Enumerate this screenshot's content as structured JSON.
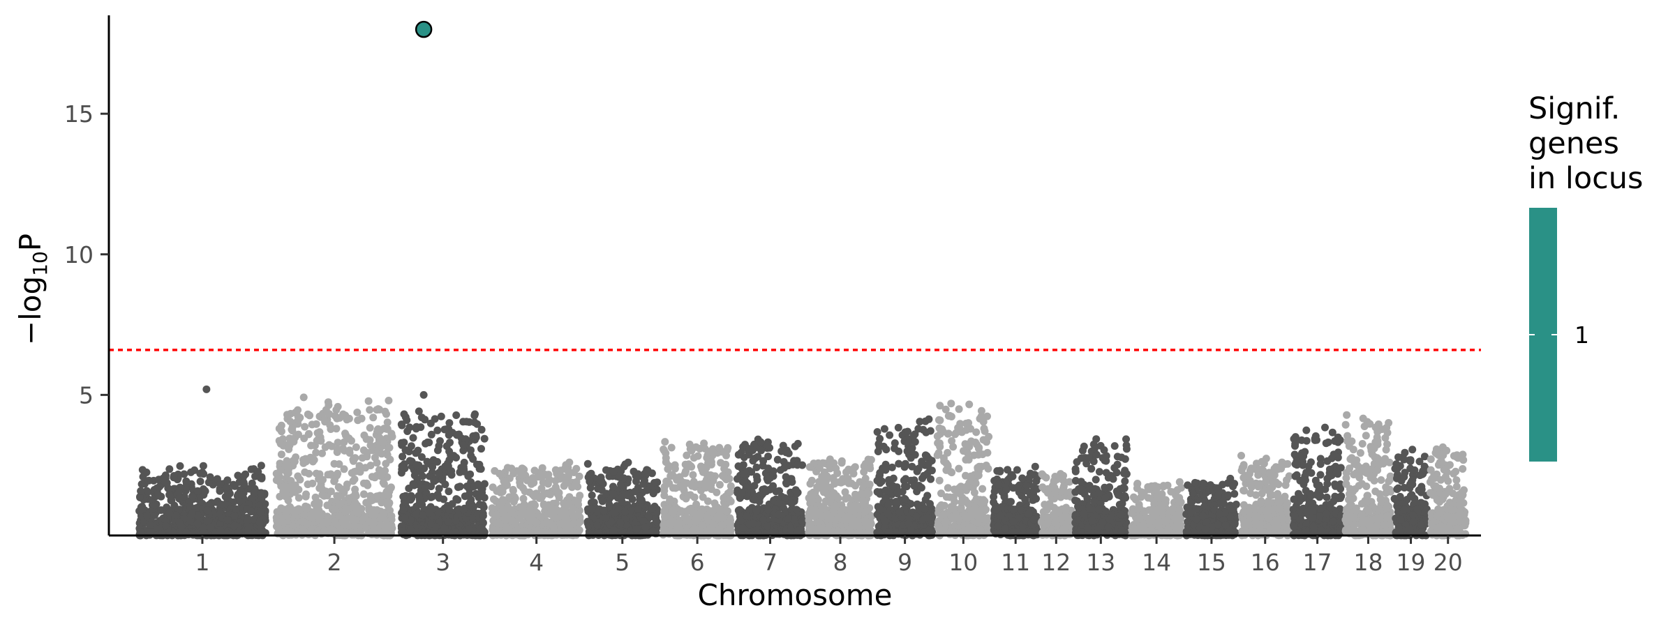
{
  "chart_data": {
    "type": "scatter",
    "subtype": "manhattan",
    "title": "",
    "xlabel": "Chromosome",
    "ylabel_main": "−log",
    "ylabel_sub": "10",
    "ylabel_tail": "P",
    "ylim": [
      0,
      18.5
    ],
    "yticks": [
      5,
      10,
      15
    ],
    "grid": false,
    "threshold": {
      "value": 6.6,
      "color": "#ff0000",
      "style": "dotted"
    },
    "point_colors": {
      "odd": "#555555",
      "even": "#a9a9a9"
    },
    "chromosomes": [
      {
        "label": "1",
        "x0": 0,
        "x1": 1000,
        "peak": 2.5
      },
      {
        "label": "2",
        "x0": 1000,
        "x1": 1920,
        "peak": 5.0
      },
      {
        "label": "3",
        "x0": 1920,
        "x1": 2580,
        "peak": 4.8
      },
      {
        "label": "4",
        "x0": 2580,
        "x1": 3280,
        "peak": 2.7
      },
      {
        "label": "5",
        "x0": 3280,
        "x1": 3830,
        "peak": 2.6
      },
      {
        "label": "6",
        "x0": 3830,
        "x1": 4370,
        "peak": 3.5
      },
      {
        "label": "7",
        "x0": 4370,
        "x1": 4890,
        "peak": 3.6
      },
      {
        "label": "8",
        "x0": 4890,
        "x1": 5390,
        "peak": 3.0
      },
      {
        "label": "9",
        "x0": 5390,
        "x1": 5830,
        "peak": 4.3
      },
      {
        "label": "10",
        "x0": 5830,
        "x1": 6240,
        "peak": 4.8
      },
      {
        "label": "11",
        "x0": 6240,
        "x1": 6590,
        "peak": 2.6
      },
      {
        "label": "12",
        "x0": 6590,
        "x1": 6830,
        "peak": 2.5
      },
      {
        "label": "13",
        "x0": 6830,
        "x1": 7240,
        "peak": 3.6
      },
      {
        "label": "14",
        "x0": 7240,
        "x1": 7640,
        "peak": 2.0
      },
      {
        "label": "15",
        "x0": 7640,
        "x1": 8040,
        "peak": 2.1
      },
      {
        "label": "16",
        "x0": 8040,
        "x1": 8420,
        "peak": 2.9
      },
      {
        "label": "17",
        "x0": 8420,
        "x1": 8800,
        "peak": 3.9
      },
      {
        "label": "18",
        "x0": 8800,
        "x1": 9160,
        "peak": 4.5
      },
      {
        "label": "19",
        "x0": 9160,
        "x1": 9420,
        "peak": 3.1
      },
      {
        "label": "20",
        "x0": 9420,
        "x1": 9700,
        "peak": 3.4
      }
    ],
    "x_range": [
      -180,
      9800
    ],
    "highlighted": [
      {
        "chrom": "3",
        "x": 2110,
        "y": 18.0,
        "color": "#2a9186"
      }
    ],
    "notable_points": [
      {
        "chrom": "1",
        "x": 530,
        "y": 5.2
      },
      {
        "chrom": "3",
        "x": 2110,
        "y": 5.0
      }
    ],
    "legend": {
      "title_lines": [
        "Signif.",
        "genes",
        "in locus"
      ],
      "color": "#2a9186",
      "label": "1"
    }
  }
}
